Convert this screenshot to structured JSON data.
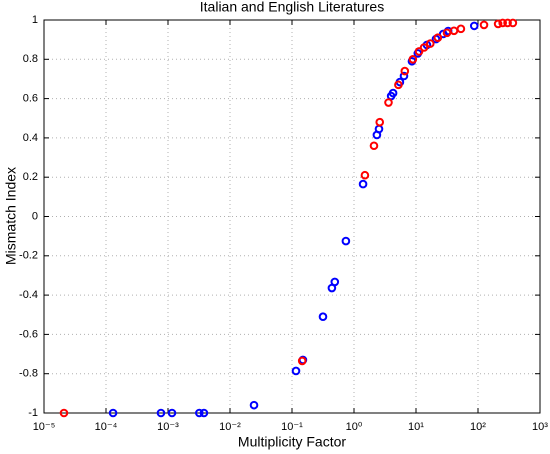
{
  "chart_data": {
    "type": "scatter",
    "title": "Italian and English Literatures",
    "xlabel": "Multiplicity Factor",
    "ylabel": "Mismatch Index",
    "xscale": "log",
    "grid": true,
    "xlim": [
      1e-05,
      1000
    ],
    "xticks": [
      {
        "value": 1e-05,
        "label": "10⁻⁵"
      },
      {
        "value": 0.0001,
        "label": "10⁻⁴"
      },
      {
        "value": 0.001,
        "label": "10⁻³"
      },
      {
        "value": 0.01,
        "label": "10⁻²"
      },
      {
        "value": 0.1,
        "label": "10⁻¹"
      },
      {
        "value": 1,
        "label": "10⁰"
      },
      {
        "value": 10,
        "label": "10¹"
      },
      {
        "value": 100,
        "label": "10²"
      },
      {
        "value": 1000,
        "label": "10³"
      }
    ],
    "ylim": [
      -1,
      1
    ],
    "yticks": [
      -1,
      -0.8,
      -0.6,
      -0.4,
      -0.2,
      0,
      0.2,
      0.4,
      0.6,
      0.8,
      1
    ],
    "series": [
      {
        "color": "#0000ff",
        "x": [
          0.00013,
          0.00077,
          0.00116,
          0.0032,
          0.0038,
          0.0244,
          0.116,
          0.15,
          0.316,
          0.44,
          0.49,
          0.74,
          1.4,
          2.34,
          2.53,
          3.97,
          4.27,
          5.5,
          6.4,
          8.6,
          10.7,
          15,
          21,
          27.5,
          33,
          87
        ],
        "values": [
          -1,
          -1,
          -1,
          -1,
          -1,
          -0.96,
          -0.786,
          -0.73,
          -0.51,
          -0.364,
          -0.333,
          -0.125,
          0.165,
          0.415,
          0.445,
          0.613,
          0.628,
          0.684,
          0.715,
          0.79,
          0.83,
          0.873,
          0.903,
          0.929,
          0.944,
          0.97
        ]
      },
      {
        "color": "#ff0000",
        "x": [
          2.1e-05,
          0.146,
          1.5,
          2.1,
          2.6,
          3.6,
          5.2,
          6.6,
          8.9,
          11.2,
          13.5,
          17,
          22.5,
          31.6,
          41,
          53,
          125,
          211,
          250,
          300,
          365
        ],
        "values": [
          -1,
          -0.735,
          0.21,
          0.36,
          0.48,
          0.58,
          0.67,
          0.74,
          0.8,
          0.84,
          0.86,
          0.88,
          0.91,
          0.935,
          0.945,
          0.955,
          0.975,
          0.98,
          0.985,
          0.985,
          0.985
        ]
      }
    ]
  }
}
